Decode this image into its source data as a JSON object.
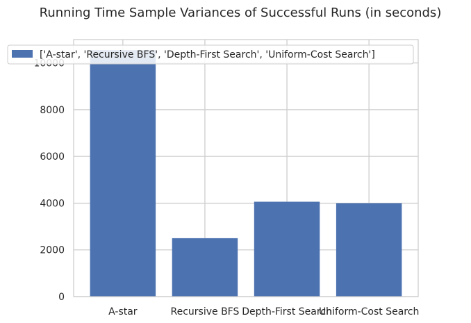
{
  "chart_data": {
    "type": "bar",
    "title": "Running Time Sample Variances of Successful Runs (in seconds)",
    "xlabel": "",
    "ylabel": "",
    "categories": [
      "A-star",
      "Recursive BFS",
      "Depth-First Search",
      "Uniform-Cost Search"
    ],
    "series": [
      {
        "name": "['A-star', 'Recursive BFS', 'Depth-First Search', 'Uniform-Cost Search']",
        "values": [
          10550,
          2500,
          4060,
          4000
        ],
        "color": "#4c72b0"
      }
    ],
    "ylim": [
      0,
      11000
    ],
    "yticks": [
      0,
      2000,
      4000,
      6000,
      8000,
      10000
    ],
    "ytick_labels": [
      "0",
      "2000",
      "4000",
      "6000",
      "8000",
      "10000"
    ],
    "grid": true,
    "legend_position": "top-left"
  }
}
